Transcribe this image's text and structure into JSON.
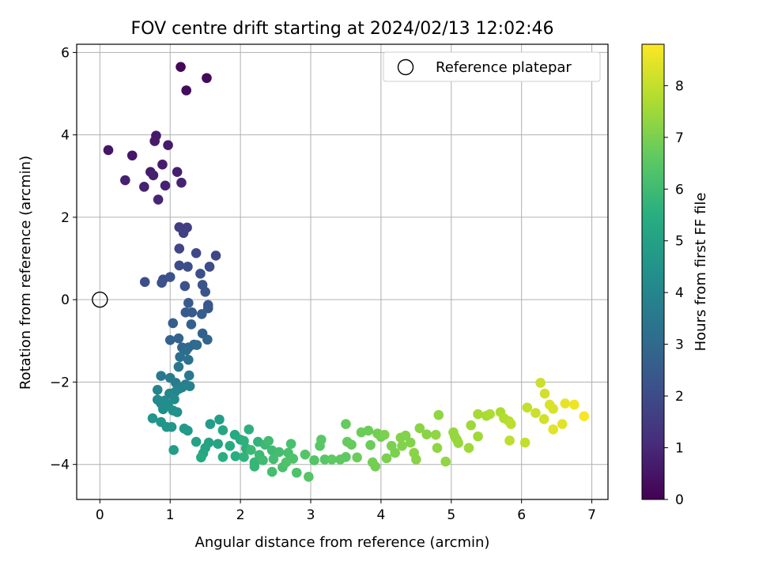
{
  "chart_data": {
    "type": "scatter",
    "title": "FOV centre drift starting at 2024/02/13 12:02:46",
    "xlabel": "Angular distance from reference (arcmin)",
    "ylabel": "Rotation from reference (arcmin)",
    "xlim": [
      -0.33,
      7.23
    ],
    "ylim": [
      -4.85,
      6.2
    ],
    "xticks": [
      "0",
      "1",
      "2",
      "3",
      "4",
      "5",
      "6",
      "7"
    ],
    "yticks": [
      "−4",
      "−2",
      "0",
      "2",
      "4",
      "6"
    ],
    "grid": true,
    "legend": {
      "placement": "top-right",
      "entries": [
        "Reference platepar"
      ]
    },
    "colorbar": {
      "label": "Hours from first FF file",
      "range": [
        0,
        8.8
      ],
      "ticks": [
        "0",
        "1",
        "2",
        "3",
        "4",
        "5",
        "6",
        "7",
        "8"
      ],
      "colormap": "viridis"
    },
    "reference_point": {
      "x": 0,
      "y": 0
    },
    "points": [
      [
        1.15,
        5.65,
        0.15
      ],
      [
        1.52,
        5.38,
        0.2
      ],
      [
        1.23,
        5.08,
        0.25
      ],
      [
        0.12,
        3.63,
        0.5
      ],
      [
        0.46,
        3.5,
        0.55
      ],
      [
        0.8,
        3.98,
        0.6
      ],
      [
        0.78,
        3.85,
        0.6
      ],
      [
        0.97,
        3.75,
        0.65
      ],
      [
        0.89,
        3.28,
        0.7
      ],
      [
        0.72,
        3.1,
        0.7
      ],
      [
        0.76,
        3.02,
        0.75
      ],
      [
        1.1,
        3.1,
        0.75
      ],
      [
        0.36,
        2.9,
        0.8
      ],
      [
        0.63,
        2.74,
        0.8
      ],
      [
        0.93,
        2.77,
        0.85
      ],
      [
        1.16,
        2.84,
        0.85
      ],
      [
        0.83,
        2.43,
        0.9
      ],
      [
        1.13,
        1.76,
        1.6
      ],
      [
        1.24,
        1.75,
        1.6
      ],
      [
        1.19,
        1.62,
        1.7
      ],
      [
        1.65,
        1.07,
        1.9
      ],
      [
        1.13,
        1.24,
        1.8
      ],
      [
        1.37,
        1.13,
        1.9
      ],
      [
        1.56,
        0.8,
        2.0
      ],
      [
        1.13,
        0.83,
        2.0
      ],
      [
        1.25,
        0.8,
        2.1
      ],
      [
        1.43,
        0.63,
        2.1
      ],
      [
        0.64,
        0.43,
        2.1
      ],
      [
        0.9,
        0.49,
        2.1
      ],
      [
        0.88,
        0.41,
        2.2
      ],
      [
        1.0,
        0.55,
        2.2
      ],
      [
        1.21,
        0.33,
        2.2
      ],
      [
        1.46,
        0.36,
        2.3
      ],
      [
        1.5,
        0.19,
        2.3
      ],
      [
        1.54,
        -0.13,
        2.4
      ],
      [
        1.54,
        -0.21,
        2.4
      ],
      [
        1.26,
        -0.08,
        2.5
      ],
      [
        1.22,
        -0.31,
        2.5
      ],
      [
        1.31,
        -0.31,
        2.5
      ],
      [
        1.45,
        -0.35,
        2.6
      ],
      [
        1.04,
        -0.57,
        2.6
      ],
      [
        1.3,
        -0.6,
        2.7
      ],
      [
        1.46,
        -0.82,
        2.7
      ],
      [
        1.12,
        -0.94,
        2.8
      ],
      [
        1.0,
        -0.98,
        2.8
      ],
      [
        1.53,
        -0.97,
        2.9
      ],
      [
        1.17,
        -1.16,
        2.9
      ],
      [
        1.26,
        -1.16,
        3.0
      ],
      [
        1.34,
        -1.09,
        3.0
      ],
      [
        1.23,
        -1.23,
        3.1
      ],
      [
        1.38,
        -1.1,
        3.1
      ],
      [
        1.14,
        -1.39,
        3.2
      ],
      [
        1.26,
        -1.46,
        3.3
      ],
      [
        1.12,
        -1.63,
        3.4
      ],
      [
        1.27,
        -1.84,
        3.5
      ],
      [
        0.87,
        -1.85,
        3.5
      ],
      [
        1.0,
        -1.9,
        3.6
      ],
      [
        1.08,
        -2.02,
        3.7
      ],
      [
        1.22,
        -2.06,
        3.7
      ],
      [
        1.28,
        -2.1,
        3.8
      ],
      [
        1.13,
        -2.16,
        3.8
      ],
      [
        1.17,
        -2.13,
        3.9
      ],
      [
        0.82,
        -2.19,
        3.9
      ],
      [
        0.99,
        -2.28,
        4.0
      ],
      [
        1.07,
        -2.24,
        4.0
      ],
      [
        0.82,
        -2.43,
        4.1
      ],
      [
        0.87,
        -2.52,
        4.1
      ],
      [
        0.92,
        -2.45,
        4.2
      ],
      [
        1.06,
        -2.42,
        4.2
      ],
      [
        0.97,
        -2.57,
        4.3
      ],
      [
        0.9,
        -2.66,
        4.3
      ],
      [
        1.04,
        -2.69,
        4.4
      ],
      [
        1.1,
        -2.73,
        4.4
      ],
      [
        0.75,
        -2.88,
        4.5
      ],
      [
        0.87,
        -2.97,
        4.5
      ],
      [
        1.02,
        -3.09,
        4.6
      ],
      [
        0.95,
        -3.09,
        4.6
      ],
      [
        1.2,
        -3.13,
        4.7
      ],
      [
        1.25,
        -3.18,
        4.7
      ],
      [
        1.05,
        -3.65,
        4.8
      ],
      [
        1.57,
        -3.02,
        4.8
      ],
      [
        1.7,
        -2.91,
        4.9
      ],
      [
        1.37,
        -3.45,
        5.0
      ],
      [
        1.55,
        -3.47,
        5.0
      ],
      [
        1.5,
        -3.6,
        5.1
      ],
      [
        1.68,
        -3.5,
        5.1
      ],
      [
        1.75,
        -3.17,
        5.2
      ],
      [
        1.47,
        -3.73,
        5.2
      ],
      [
        1.44,
        -3.83,
        5.3
      ],
      [
        1.92,
        -3.28,
        5.3
      ],
      [
        2.0,
        -3.4,
        5.4
      ],
      [
        1.85,
        -3.55,
        5.4
      ],
      [
        1.75,
        -3.82,
        5.5
      ],
      [
        1.93,
        -3.8,
        5.5
      ],
      [
        2.05,
        -3.43,
        5.6
      ],
      [
        2.12,
        -3.15,
        5.6
      ],
      [
        2.08,
        -3.61,
        5.6
      ],
      [
        2.25,
        -3.45,
        5.7
      ],
      [
        2.05,
        -3.82,
        5.7
      ],
      [
        2.2,
        -3.95,
        5.8
      ],
      [
        2.2,
        -4.05,
        5.8
      ],
      [
        2.15,
        -3.65,
        5.9
      ],
      [
        2.35,
        -3.52,
        5.9
      ],
      [
        2.27,
        -3.77,
        5.9
      ],
      [
        2.4,
        -3.43,
        6.0
      ],
      [
        2.32,
        -3.9,
        6.0
      ],
      [
        2.45,
        -3.66,
        6.0
      ],
      [
        2.47,
        -3.87,
        6.1
      ],
      [
        2.45,
        -4.18,
        6.1
      ],
      [
        2.55,
        -3.7,
        6.1
      ],
      [
        2.6,
        -4.07,
        6.2
      ],
      [
        2.68,
        -3.72,
        6.2
      ],
      [
        2.72,
        -3.5,
        6.2
      ],
      [
        2.75,
        -3.86,
        6.3
      ],
      [
        2.8,
        -4.2,
        6.3
      ],
      [
        2.65,
        -3.95,
        6.3
      ],
      [
        2.92,
        -3.76,
        6.4
      ],
      [
        2.97,
        -4.3,
        6.4
      ],
      [
        3.05,
        -3.9,
        6.4
      ],
      [
        3.15,
        -3.4,
        6.5
      ],
      [
        3.13,
        -3.55,
        6.5
      ],
      [
        3.2,
        -3.88,
        6.5
      ],
      [
        3.3,
        -3.88,
        6.6
      ],
      [
        3.42,
        -3.88,
        6.6
      ],
      [
        3.5,
        -3.82,
        6.6
      ],
      [
        3.52,
        -3.45,
        6.7
      ],
      [
        3.5,
        -3.02,
        6.7
      ],
      [
        3.58,
        -3.52,
        6.7
      ],
      [
        3.66,
        -3.83,
        6.8
      ],
      [
        3.72,
        -3.22,
        6.8
      ],
      [
        3.82,
        -3.18,
        6.8
      ],
      [
        3.85,
        -3.53,
        6.8
      ],
      [
        3.88,
        -3.95,
        6.9
      ],
      [
        3.92,
        -4.05,
        6.9
      ],
      [
        3.95,
        -3.25,
        6.9
      ],
      [
        4.0,
        -3.33,
        6.9
      ],
      [
        4.05,
        -3.28,
        7.0
      ],
      [
        4.08,
        -3.85,
        7.0
      ],
      [
        4.15,
        -3.55,
        7.0
      ],
      [
        4.2,
        -3.72,
        7.0
      ],
      [
        4.28,
        -3.35,
        7.1
      ],
      [
        4.3,
        -3.55,
        7.1
      ],
      [
        4.35,
        -3.3,
        7.1
      ],
      [
        4.42,
        -3.47,
        7.1
      ],
      [
        4.47,
        -3.72,
        7.2
      ],
      [
        4.5,
        -3.88,
        7.2
      ],
      [
        4.55,
        -3.12,
        7.2
      ],
      [
        4.65,
        -3.27,
        7.2
      ],
      [
        4.78,
        -3.28,
        7.3
      ],
      [
        4.8,
        -3.6,
        7.3
      ],
      [
        4.82,
        -2.8,
        7.3
      ],
      [
        4.92,
        -3.93,
        7.3
      ],
      [
        5.03,
        -3.22,
        7.4
      ],
      [
        5.05,
        -3.32,
        7.4
      ],
      [
        5.08,
        -3.4,
        7.4
      ],
      [
        5.1,
        -3.48,
        7.4
      ],
      [
        5.25,
        -3.6,
        7.5
      ],
      [
        5.28,
        -3.05,
        7.5
      ],
      [
        5.38,
        -3.32,
        7.5
      ],
      [
        5.38,
        -2.78,
        7.6
      ],
      [
        5.5,
        -2.82,
        7.6
      ],
      [
        5.55,
        -2.78,
        7.7
      ],
      [
        5.7,
        -2.73,
        7.7
      ],
      [
        5.75,
        -2.88,
        7.8
      ],
      [
        5.82,
        -2.95,
        7.8
      ],
      [
        5.85,
        -3.02,
        7.9
      ],
      [
        5.83,
        -3.42,
        7.9
      ],
      [
        6.05,
        -3.47,
        8.0
      ],
      [
        6.08,
        -2.62,
        8.0
      ],
      [
        6.2,
        -2.75,
        8.1
      ],
      [
        6.27,
        -2.02,
        8.1
      ],
      [
        6.33,
        -2.28,
        8.2
      ],
      [
        6.32,
        -2.9,
        8.2
      ],
      [
        6.4,
        -2.55,
        8.3
      ],
      [
        6.45,
        -2.65,
        8.3
      ],
      [
        6.45,
        -3.15,
        8.4
      ],
      [
        6.58,
        -3.02,
        8.4
      ],
      [
        6.62,
        -2.52,
        8.5
      ],
      [
        6.75,
        -2.55,
        8.6
      ],
      [
        6.89,
        -2.83,
        8.7
      ]
    ]
  }
}
